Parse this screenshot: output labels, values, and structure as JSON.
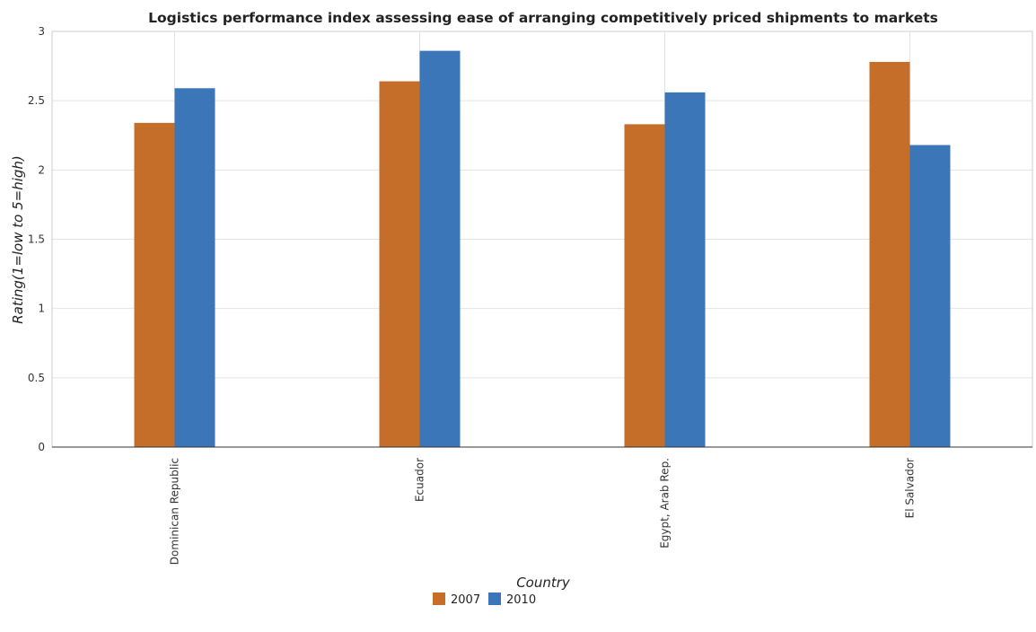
{
  "chart_data": {
    "type": "bar",
    "title": "Logistics performance index assessing ease of arranging competitively priced shipments to markets",
    "xlabel": "Country",
    "ylabel": "Rating(1=low to 5=high)",
    "categories": [
      "Dominican Republic",
      "Ecuador",
      "Egypt, Arab Rep.",
      "El Salvador"
    ],
    "series": [
      {
        "name": "2007",
        "color": "#c46e2a",
        "values": [
          2.34,
          2.64,
          2.33,
          2.78
        ]
      },
      {
        "name": "2010",
        "color": "#3b76b8",
        "values": [
          2.59,
          2.86,
          2.56,
          2.18
        ]
      }
    ],
    "ylim": [
      0,
      3
    ],
    "yticks": [
      "0",
      "0.5",
      "1",
      "1.5",
      "2",
      "2.5",
      "3"
    ],
    "grid": true,
    "legend_position": "bottom-center"
  }
}
